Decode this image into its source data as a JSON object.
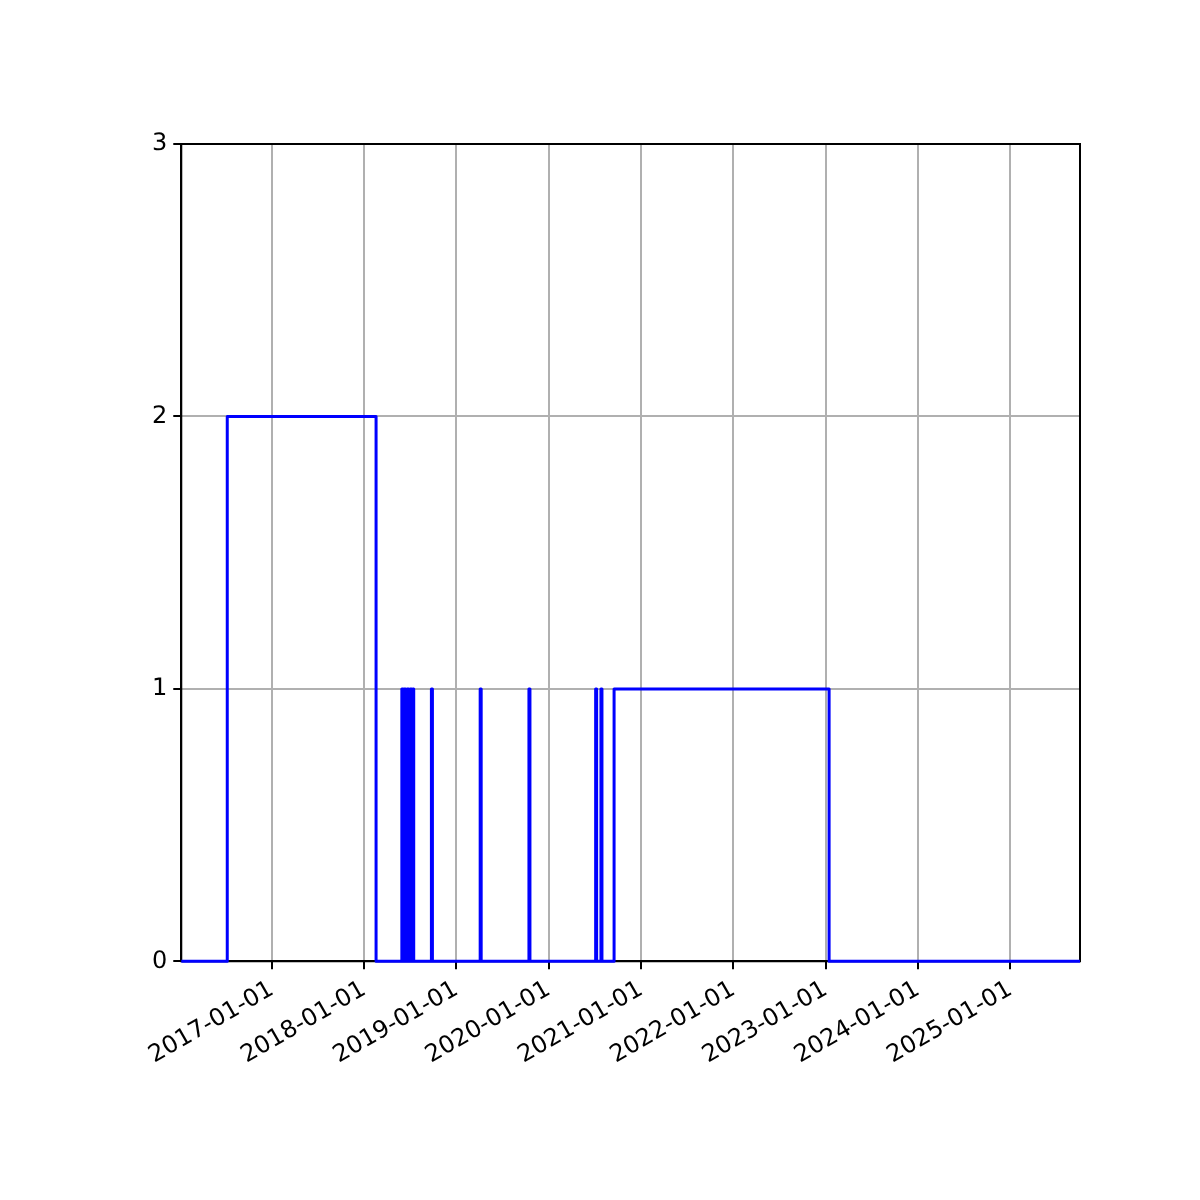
{
  "chart_data": {
    "type": "step",
    "x": [
      "2016-01-08",
      "2016-07-08",
      "2018-02-17",
      "2018-05-30",
      "2018-06-03",
      "2018-06-08",
      "2018-06-14",
      "2018-06-20",
      "2018-06-26",
      "2018-07-02",
      "2018-07-08",
      "2018-07-12",
      "2018-07-16",
      "2018-09-24",
      "2018-09-28",
      "2019-04-05",
      "2019-04-09",
      "2019-10-15",
      "2019-10-19",
      "2020-07-05",
      "2020-07-09",
      "2020-07-26",
      "2020-07-30",
      "2020-09-16",
      "2023-01-15",
      "2025-10-04"
    ],
    "series": [
      {
        "color": "#0000ff",
        "values": [
          0,
          2,
          0,
          1,
          0,
          1,
          0,
          1,
          0,
          1,
          0,
          1,
          0,
          1,
          0,
          1,
          0,
          1,
          0,
          1,
          0,
          1,
          0,
          1,
          0,
          0
        ]
      }
    ],
    "xlim": [
      "2016-01-08",
      "2025-10-04"
    ],
    "xticks": [
      "2017-01-01",
      "2018-01-01",
      "2019-01-01",
      "2020-01-01",
      "2021-01-01",
      "2022-01-01",
      "2023-01-01",
      "2024-01-01",
      "2025-01-01"
    ],
    "ylim": [
      0,
      3
    ],
    "yticks": [
      0,
      1,
      2,
      3
    ],
    "grid": true,
    "legend": false
  }
}
